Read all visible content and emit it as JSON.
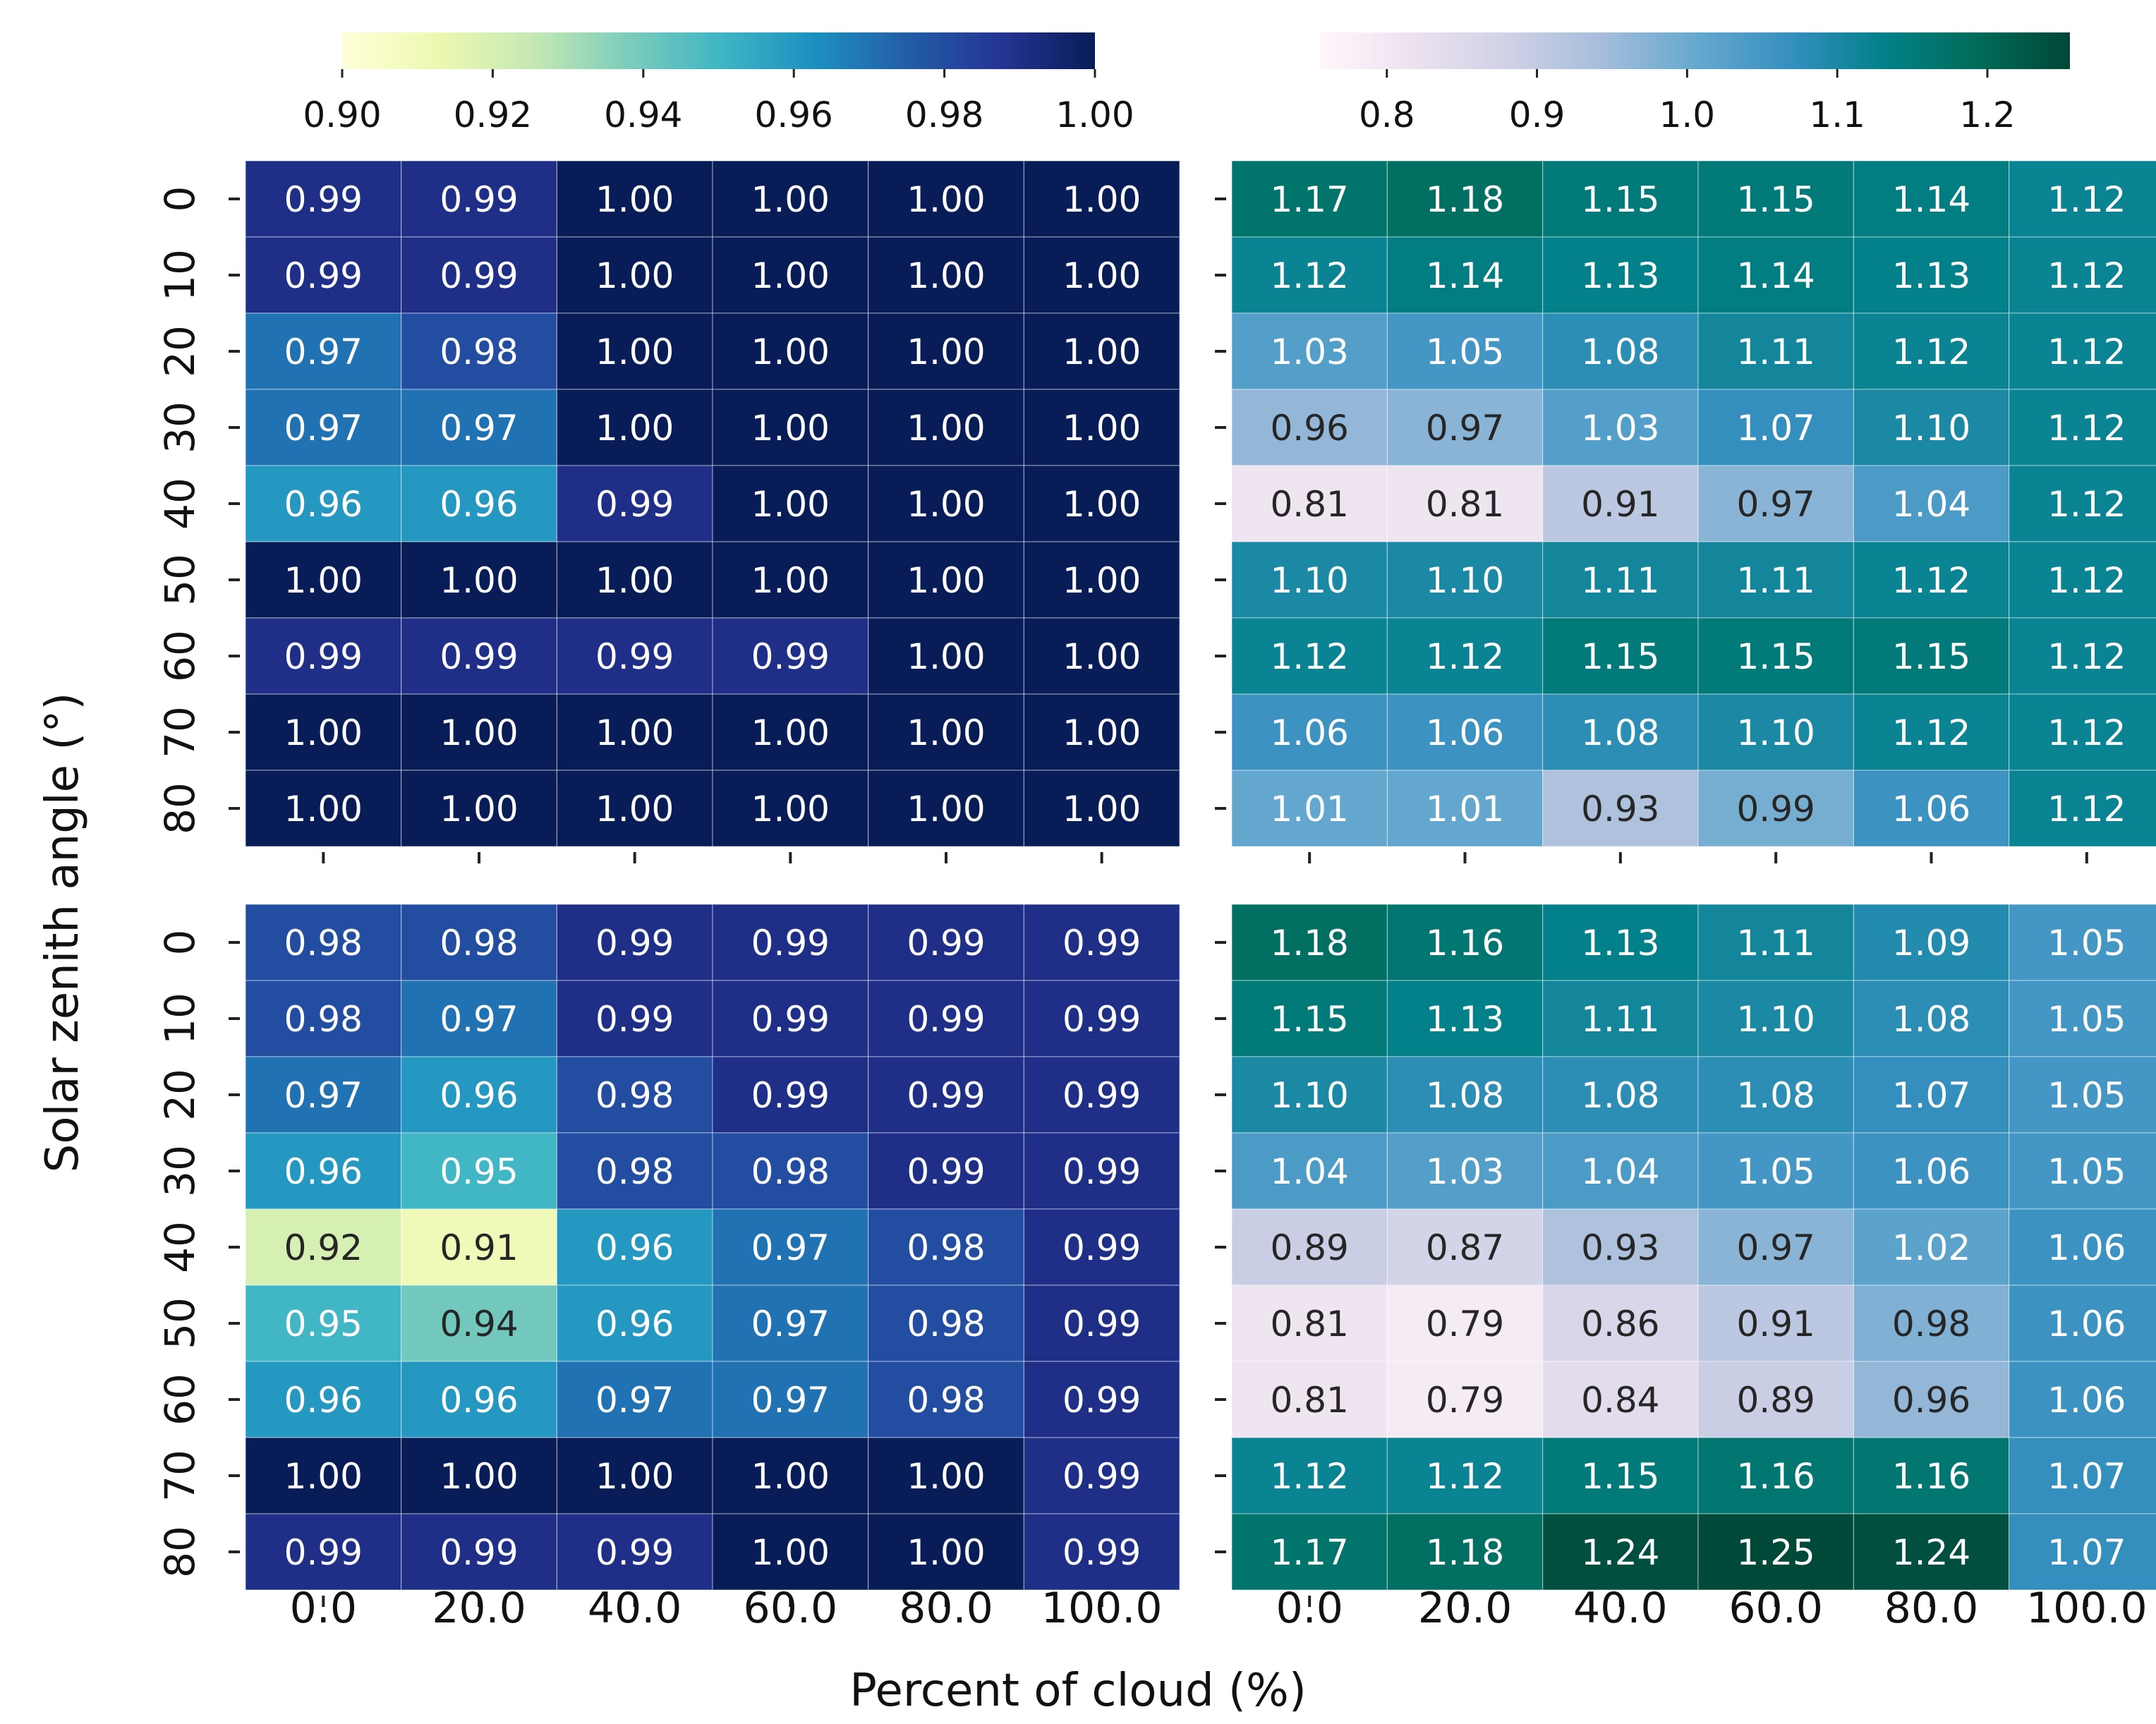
{
  "chart_data": {
    "type": "heatmap",
    "xlabel": "Percent of cloud (%)",
    "ylabel": "Solar zenith angle (°)",
    "x_categories": [
      "0.0",
      "20.0",
      "40.0",
      "60.0",
      "80.0",
      "100.0"
    ],
    "y_categories": [
      "0",
      "10",
      "20",
      "30",
      "40",
      "50",
      "60",
      "70",
      "80"
    ],
    "colorbars": [
      {
        "colormap": "YlGnBu",
        "range": [
          0.9,
          1.0
        ],
        "ticks": [
          "0.90",
          "0.92",
          "0.94",
          "0.96",
          "0.98",
          "1.00"
        ],
        "tick_values": [
          0.9,
          0.92,
          0.94,
          0.96,
          0.98,
          1.0
        ]
      },
      {
        "colormap": "PuBuGn",
        "range": [
          0.755,
          1.255
        ],
        "ticks": [
          "0.8",
          "0.9",
          "1.0",
          "1.1",
          "1.2"
        ],
        "tick_values": [
          0.8,
          0.9,
          1.0,
          1.1,
          1.2
        ]
      }
    ],
    "panels": [
      {
        "id": "top-left",
        "colorbar": 0,
        "values": [
          [
            0.99,
            0.99,
            1.0,
            1.0,
            1.0,
            1.0
          ],
          [
            0.99,
            0.99,
            1.0,
            1.0,
            1.0,
            1.0
          ],
          [
            0.97,
            0.98,
            1.0,
            1.0,
            1.0,
            1.0
          ],
          [
            0.97,
            0.97,
            1.0,
            1.0,
            1.0,
            1.0
          ],
          [
            0.96,
            0.96,
            0.99,
            1.0,
            1.0,
            1.0
          ],
          [
            1.0,
            1.0,
            1.0,
            1.0,
            1.0,
            1.0
          ],
          [
            0.99,
            0.99,
            0.99,
            0.99,
            1.0,
            1.0
          ],
          [
            1.0,
            1.0,
            1.0,
            1.0,
            1.0,
            1.0
          ],
          [
            1.0,
            1.0,
            1.0,
            1.0,
            1.0,
            1.0
          ]
        ]
      },
      {
        "id": "top-right",
        "colorbar": 1,
        "values": [
          [
            1.17,
            1.18,
            1.15,
            1.15,
            1.14,
            1.12
          ],
          [
            1.12,
            1.14,
            1.13,
            1.14,
            1.13,
            1.12
          ],
          [
            1.03,
            1.05,
            1.08,
            1.11,
            1.12,
            1.12
          ],
          [
            0.96,
            0.97,
            1.03,
            1.07,
            1.1,
            1.12
          ],
          [
            0.81,
            0.81,
            0.91,
            0.97,
            1.04,
            1.12
          ],
          [
            1.1,
            1.1,
            1.11,
            1.11,
            1.12,
            1.12
          ],
          [
            1.12,
            1.12,
            1.15,
            1.15,
            1.15,
            1.12
          ],
          [
            1.06,
            1.06,
            1.08,
            1.1,
            1.12,
            1.12
          ],
          [
            1.01,
            1.01,
            0.93,
            0.99,
            1.06,
            1.12
          ]
        ]
      },
      {
        "id": "bottom-left",
        "colorbar": 0,
        "values": [
          [
            0.98,
            0.98,
            0.99,
            0.99,
            0.99,
            0.99
          ],
          [
            0.98,
            0.97,
            0.99,
            0.99,
            0.99,
            0.99
          ],
          [
            0.97,
            0.96,
            0.98,
            0.99,
            0.99,
            0.99
          ],
          [
            0.96,
            0.95,
            0.98,
            0.98,
            0.99,
            0.99
          ],
          [
            0.92,
            0.91,
            0.96,
            0.97,
            0.98,
            0.99
          ],
          [
            0.95,
            0.94,
            0.96,
            0.97,
            0.98,
            0.99
          ],
          [
            0.96,
            0.96,
            0.97,
            0.97,
            0.98,
            0.99
          ],
          [
            1.0,
            1.0,
            1.0,
            1.0,
            1.0,
            0.99
          ],
          [
            0.99,
            0.99,
            0.99,
            1.0,
            1.0,
            0.99
          ]
        ]
      },
      {
        "id": "bottom-right",
        "colorbar": 1,
        "values": [
          [
            1.18,
            1.16,
            1.13,
            1.11,
            1.09,
            1.05
          ],
          [
            1.15,
            1.13,
            1.11,
            1.1,
            1.08,
            1.05
          ],
          [
            1.1,
            1.08,
            1.08,
            1.08,
            1.07,
            1.05
          ],
          [
            1.04,
            1.03,
            1.04,
            1.05,
            1.06,
            1.05
          ],
          [
            0.89,
            0.87,
            0.93,
            0.97,
            1.02,
            1.06
          ],
          [
            0.81,
            0.79,
            0.86,
            0.91,
            0.98,
            1.06
          ],
          [
            0.81,
            0.79,
            0.84,
            0.89,
            0.96,
            1.06
          ],
          [
            1.12,
            1.12,
            1.15,
            1.16,
            1.16,
            1.07
          ],
          [
            1.17,
            1.18,
            1.24,
            1.25,
            1.24,
            1.07
          ]
        ]
      }
    ]
  }
}
